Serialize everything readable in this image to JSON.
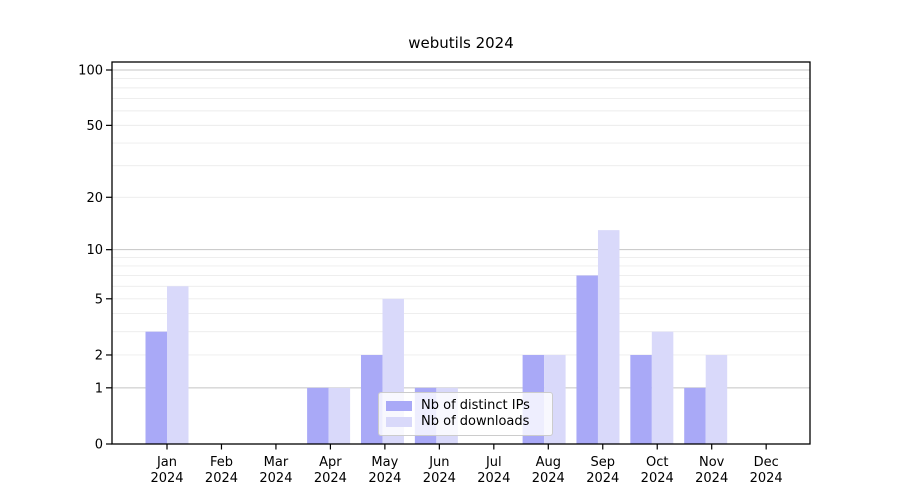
{
  "chart_data": {
    "type": "bar",
    "title": "webutils 2024",
    "categories": [
      "Jan 2024",
      "Feb 2024",
      "Mar 2024",
      "Apr 2024",
      "May 2024",
      "Jun 2024",
      "Jul 2024",
      "Aug 2024",
      "Sep 2024",
      "Oct 2024",
      "Nov 2024",
      "Dec 2024"
    ],
    "series": [
      {
        "name": "Nb of distinct IPs",
        "color": "#a9a9f7",
        "values": [
          3,
          0,
          0,
          1,
          2,
          1,
          0,
          2,
          7,
          2,
          1,
          0
        ]
      },
      {
        "name": "Nb of downloads",
        "color": "#d9d9fa",
        "values": [
          6,
          0,
          0,
          1,
          5,
          1,
          0,
          2,
          13,
          3,
          2,
          0
        ]
      }
    ],
    "xlabel": "",
    "ylabel": "",
    "y_ticks": [
      0,
      1,
      2,
      5,
      10,
      20,
      50,
      100
    ],
    "y_scale": "log10(1+x)",
    "ylim": [
      0,
      110
    ],
    "grid": {
      "major_lines": [
        1,
        10,
        100
      ],
      "minor_lines": [
        2,
        3,
        4,
        5,
        6,
        7,
        8,
        9,
        20,
        30,
        40,
        50,
        60,
        70,
        80,
        90
      ],
      "major_color": "#c4c4c4",
      "minor_color": "#ececec"
    },
    "legend_position": "lower center"
  },
  "colors": {
    "background": "#ffffff",
    "axis": "#000000",
    "tick_text": "#000000"
  }
}
